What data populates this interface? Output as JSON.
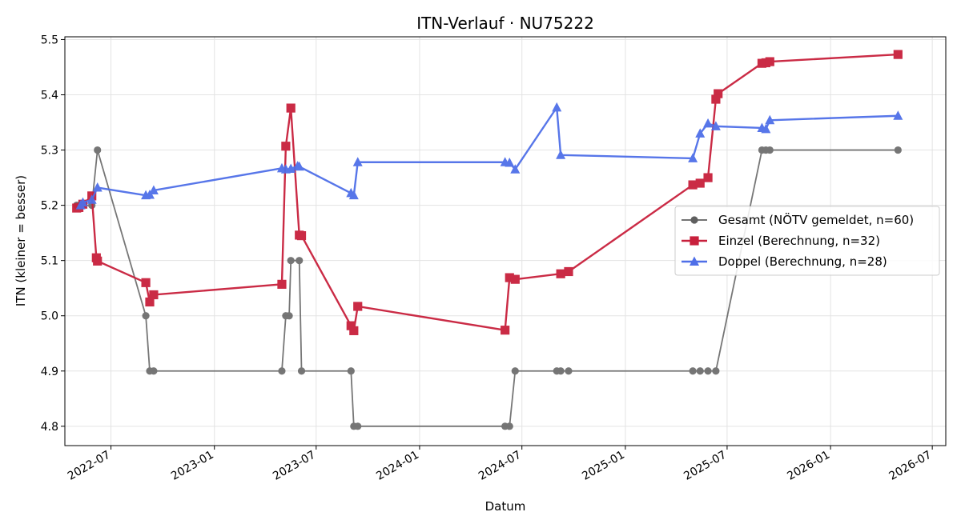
{
  "chart_data": {
    "type": "line",
    "title": "ITN-Verlauf · NU75222",
    "xlabel": "Datum",
    "ylabel": "ITN  (kleiner = besser)",
    "x_type": "date",
    "xlim": [
      "2022-04-10",
      "2026-07-25"
    ],
    "ylim": [
      4.765,
      5.505
    ],
    "y_ticks": [
      4.8,
      4.9,
      5.0,
      5.1,
      5.2,
      5.3,
      5.4,
      5.5
    ],
    "y_tick_labels": [
      "4.8",
      "4.9",
      "5.0",
      "5.1",
      "5.2",
      "5.3",
      "5.4",
      "5.5"
    ],
    "x_ticks": [
      "2022-07-01",
      "2023-01-01",
      "2023-07-01",
      "2024-01-01",
      "2024-07-01",
      "2025-01-01",
      "2025-07-01",
      "2026-01-01",
      "2026-07-01"
    ],
    "x_tick_labels": [
      "2022-07",
      "2023-01",
      "2023-07",
      "2024-01",
      "2024-07",
      "2025-01",
      "2025-07",
      "2026-01",
      "2026-07"
    ],
    "grid": true,
    "legend_position": "center-right",
    "series": [
      {
        "name": "Gesamt (NÖTV gemeldet, n=60)",
        "color": "#5f5f5f",
        "marker": "circle",
        "points": [
          {
            "x": "2022-05-01",
            "y": 5.2
          },
          {
            "x": "2022-05-05",
            "y": 5.2
          },
          {
            "x": "2022-05-12",
            "y": 5.2
          },
          {
            "x": "2022-05-28",
            "y": 5.2
          },
          {
            "x": "2022-06-07",
            "y": 5.3
          },
          {
            "x": "2022-09-01",
            "y": 5.0
          },
          {
            "x": "2022-09-08",
            "y": 4.9
          },
          {
            "x": "2022-09-15",
            "y": 4.9
          },
          {
            "x": "2023-05-01",
            "y": 4.9
          },
          {
            "x": "2023-05-08",
            "y": 5.0
          },
          {
            "x": "2023-05-14",
            "y": 5.0
          },
          {
            "x": "2023-05-17",
            "y": 5.1
          },
          {
            "x": "2023-06-01",
            "y": 5.1
          },
          {
            "x": "2023-06-05",
            "y": 4.9
          },
          {
            "x": "2023-09-01",
            "y": 4.9
          },
          {
            "x": "2023-09-06",
            "y": 4.8
          },
          {
            "x": "2023-09-13",
            "y": 4.8
          },
          {
            "x": "2024-06-01",
            "y": 4.8
          },
          {
            "x": "2024-06-09",
            "y": 4.8
          },
          {
            "x": "2024-06-19",
            "y": 4.9
          },
          {
            "x": "2024-09-01",
            "y": 4.9
          },
          {
            "x": "2024-09-08",
            "y": 4.9
          },
          {
            "x": "2024-09-22",
            "y": 4.9
          },
          {
            "x": "2025-05-01",
            "y": 4.9
          },
          {
            "x": "2025-05-14",
            "y": 4.9
          },
          {
            "x": "2025-05-28",
            "y": 4.9
          },
          {
            "x": "2025-06-11",
            "y": 4.9
          },
          {
            "x": "2025-09-01",
            "y": 5.3
          },
          {
            "x": "2025-09-08",
            "y": 5.3
          },
          {
            "x": "2025-09-15",
            "y": 5.3
          },
          {
            "x": "2026-05-01",
            "y": 5.3
          }
        ]
      },
      {
        "name": "Einzel (Berechnung, n=32)",
        "color": "#c8203c",
        "marker": "square",
        "points": [
          {
            "x": "2022-05-01",
            "y": 5.195
          },
          {
            "x": "2022-05-05",
            "y": 5.196
          },
          {
            "x": "2022-05-12",
            "y": 5.202
          },
          {
            "x": "2022-05-28",
            "y": 5.217
          },
          {
            "x": "2022-06-05",
            "y": 5.105
          },
          {
            "x": "2022-06-07",
            "y": 5.099
          },
          {
            "x": "2022-09-01",
            "y": 5.06
          },
          {
            "x": "2022-09-08",
            "y": 5.025
          },
          {
            "x": "2022-09-15",
            "y": 5.038
          },
          {
            "x": "2023-05-01",
            "y": 5.057
          },
          {
            "x": "2023-05-08",
            "y": 5.307
          },
          {
            "x": "2023-05-17",
            "y": 5.376
          },
          {
            "x": "2023-06-01",
            "y": 5.146
          },
          {
            "x": "2023-06-05",
            "y": 5.145
          },
          {
            "x": "2023-09-01",
            "y": 4.982
          },
          {
            "x": "2023-09-06",
            "y": 4.973
          },
          {
            "x": "2023-09-13",
            "y": 5.017
          },
          {
            "x": "2024-06-01",
            "y": 4.974
          },
          {
            "x": "2024-06-09",
            "y": 5.069
          },
          {
            "x": "2024-06-19",
            "y": 5.066
          },
          {
            "x": "2024-09-08",
            "y": 5.076
          },
          {
            "x": "2024-09-22",
            "y": 5.08
          },
          {
            "x": "2025-05-01",
            "y": 5.237
          },
          {
            "x": "2025-05-14",
            "y": 5.24
          },
          {
            "x": "2025-05-28",
            "y": 5.25
          },
          {
            "x": "2025-06-11",
            "y": 5.392
          },
          {
            "x": "2025-06-15",
            "y": 5.402
          },
          {
            "x": "2025-09-01",
            "y": 5.457
          },
          {
            "x": "2025-09-08",
            "y": 5.458
          },
          {
            "x": "2025-09-15",
            "y": 5.46
          },
          {
            "x": "2026-05-01",
            "y": 5.473
          }
        ]
      },
      {
        "name": "Doppel (Berechnung, n=28)",
        "color": "#4f6fe8",
        "marker": "triangle",
        "points": [
          {
            "x": "2022-05-08",
            "y": 5.2
          },
          {
            "x": "2022-05-12",
            "y": 5.205
          },
          {
            "x": "2022-05-28",
            "y": 5.21
          },
          {
            "x": "2022-06-07",
            "y": 5.232
          },
          {
            "x": "2022-09-01",
            "y": 5.218
          },
          {
            "x": "2022-09-08",
            "y": 5.219
          },
          {
            "x": "2022-09-15",
            "y": 5.227
          },
          {
            "x": "2023-05-01",
            "y": 5.267
          },
          {
            "x": "2023-05-08",
            "y": 5.265
          },
          {
            "x": "2023-05-17",
            "y": 5.266
          },
          {
            "x": "2023-05-29",
            "y": 5.271
          },
          {
            "x": "2023-06-01",
            "y": 5.27
          },
          {
            "x": "2023-09-01",
            "y": 5.222
          },
          {
            "x": "2023-09-06",
            "y": 5.218
          },
          {
            "x": "2023-09-13",
            "y": 5.278
          },
          {
            "x": "2024-06-01",
            "y": 5.278
          },
          {
            "x": "2024-06-09",
            "y": 5.277
          },
          {
            "x": "2024-06-19",
            "y": 5.265
          },
          {
            "x": "2024-09-01",
            "y": 5.377
          },
          {
            "x": "2024-09-08",
            "y": 5.291
          },
          {
            "x": "2025-05-01",
            "y": 5.285
          },
          {
            "x": "2025-05-14",
            "y": 5.33
          },
          {
            "x": "2025-05-28",
            "y": 5.348
          },
          {
            "x": "2025-06-11",
            "y": 5.343
          },
          {
            "x": "2025-09-01",
            "y": 5.34
          },
          {
            "x": "2025-09-08",
            "y": 5.338
          },
          {
            "x": "2025-09-15",
            "y": 5.354
          },
          {
            "x": "2026-05-01",
            "y": 5.362
          }
        ]
      }
    ]
  }
}
